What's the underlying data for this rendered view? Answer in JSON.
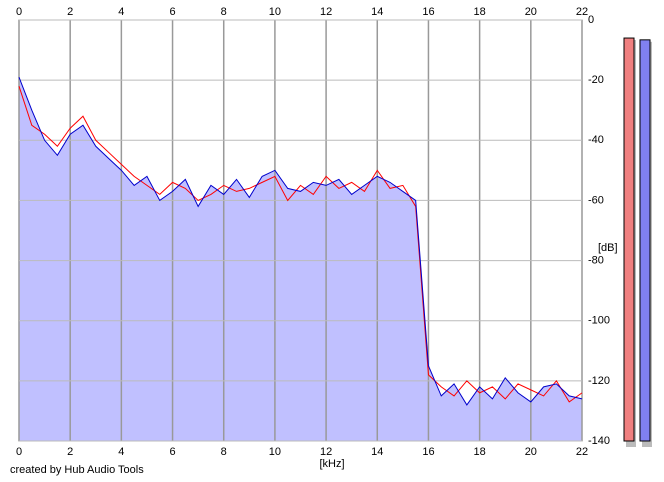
{
  "chart_data": {
    "type": "line",
    "x_label": "[kHz]",
    "y_label": "[dB]",
    "footer": "created by Hub Audio Tools",
    "x": [
      0,
      0.5,
      1,
      1.5,
      2,
      2.5,
      3,
      3.5,
      4,
      4.5,
      5,
      5.5,
      6,
      6.5,
      7,
      7.5,
      8,
      8.5,
      9,
      9.5,
      10,
      10.5,
      11,
      11.5,
      12,
      12.5,
      13,
      13.5,
      14,
      14.5,
      15,
      15.5,
      16,
      16.5,
      17,
      17.5,
      18,
      18.5,
      19,
      19.5,
      20,
      20.5,
      21,
      21.5,
      22
    ],
    "series": [
      {
        "color": "#ff0000",
        "values": [
          -22,
          -35,
          -38,
          -42,
          -36,
          -32,
          -40,
          -44,
          -48,
          -52,
          -55,
          -58,
          -54,
          -56,
          -60,
          -58,
          -55,
          -57,
          -56,
          -54,
          -52,
          -60,
          -55,
          -58,
          -52,
          -56,
          -54,
          -57,
          -50,
          -56,
          -55,
          -62,
          -118,
          -122,
          -125,
          -120,
          -124,
          -122,
          -126,
          -121,
          -123,
          -125,
          -120,
          -127,
          -124
        ]
      },
      {
        "color": "#0000cc",
        "values": [
          -19,
          -30,
          -40,
          -45,
          -38,
          -35,
          -42,
          -46,
          -50,
          -55,
          -52,
          -60,
          -57,
          -53,
          -62,
          -55,
          -58,
          -53,
          -59,
          -52,
          -50,
          -56,
          -57,
          -54,
          -55,
          -53,
          -58,
          -55,
          -52,
          -54,
          -57,
          -60,
          -115,
          -125,
          -121,
          -128,
          -122,
          -126,
          -119,
          -124,
          -127,
          -122,
          -121,
          -125,
          -126
        ]
      }
    ],
    "fill_color": "#c0c0ff",
    "meters": [
      {
        "color": "#f08080",
        "value": -6
      },
      {
        "color": "#8080f0",
        "value": -6.6
      }
    ],
    "xlim": [
      0,
      22
    ],
    "xticks": [
      0,
      2,
      4,
      6,
      8,
      10,
      12,
      14,
      16,
      18,
      20,
      22
    ],
    "ylim": [
      -140,
      0
    ],
    "yticks": [
      0,
      -20,
      -40,
      -60,
      -80,
      -100,
      -120,
      -140
    ],
    "grid": true
  }
}
